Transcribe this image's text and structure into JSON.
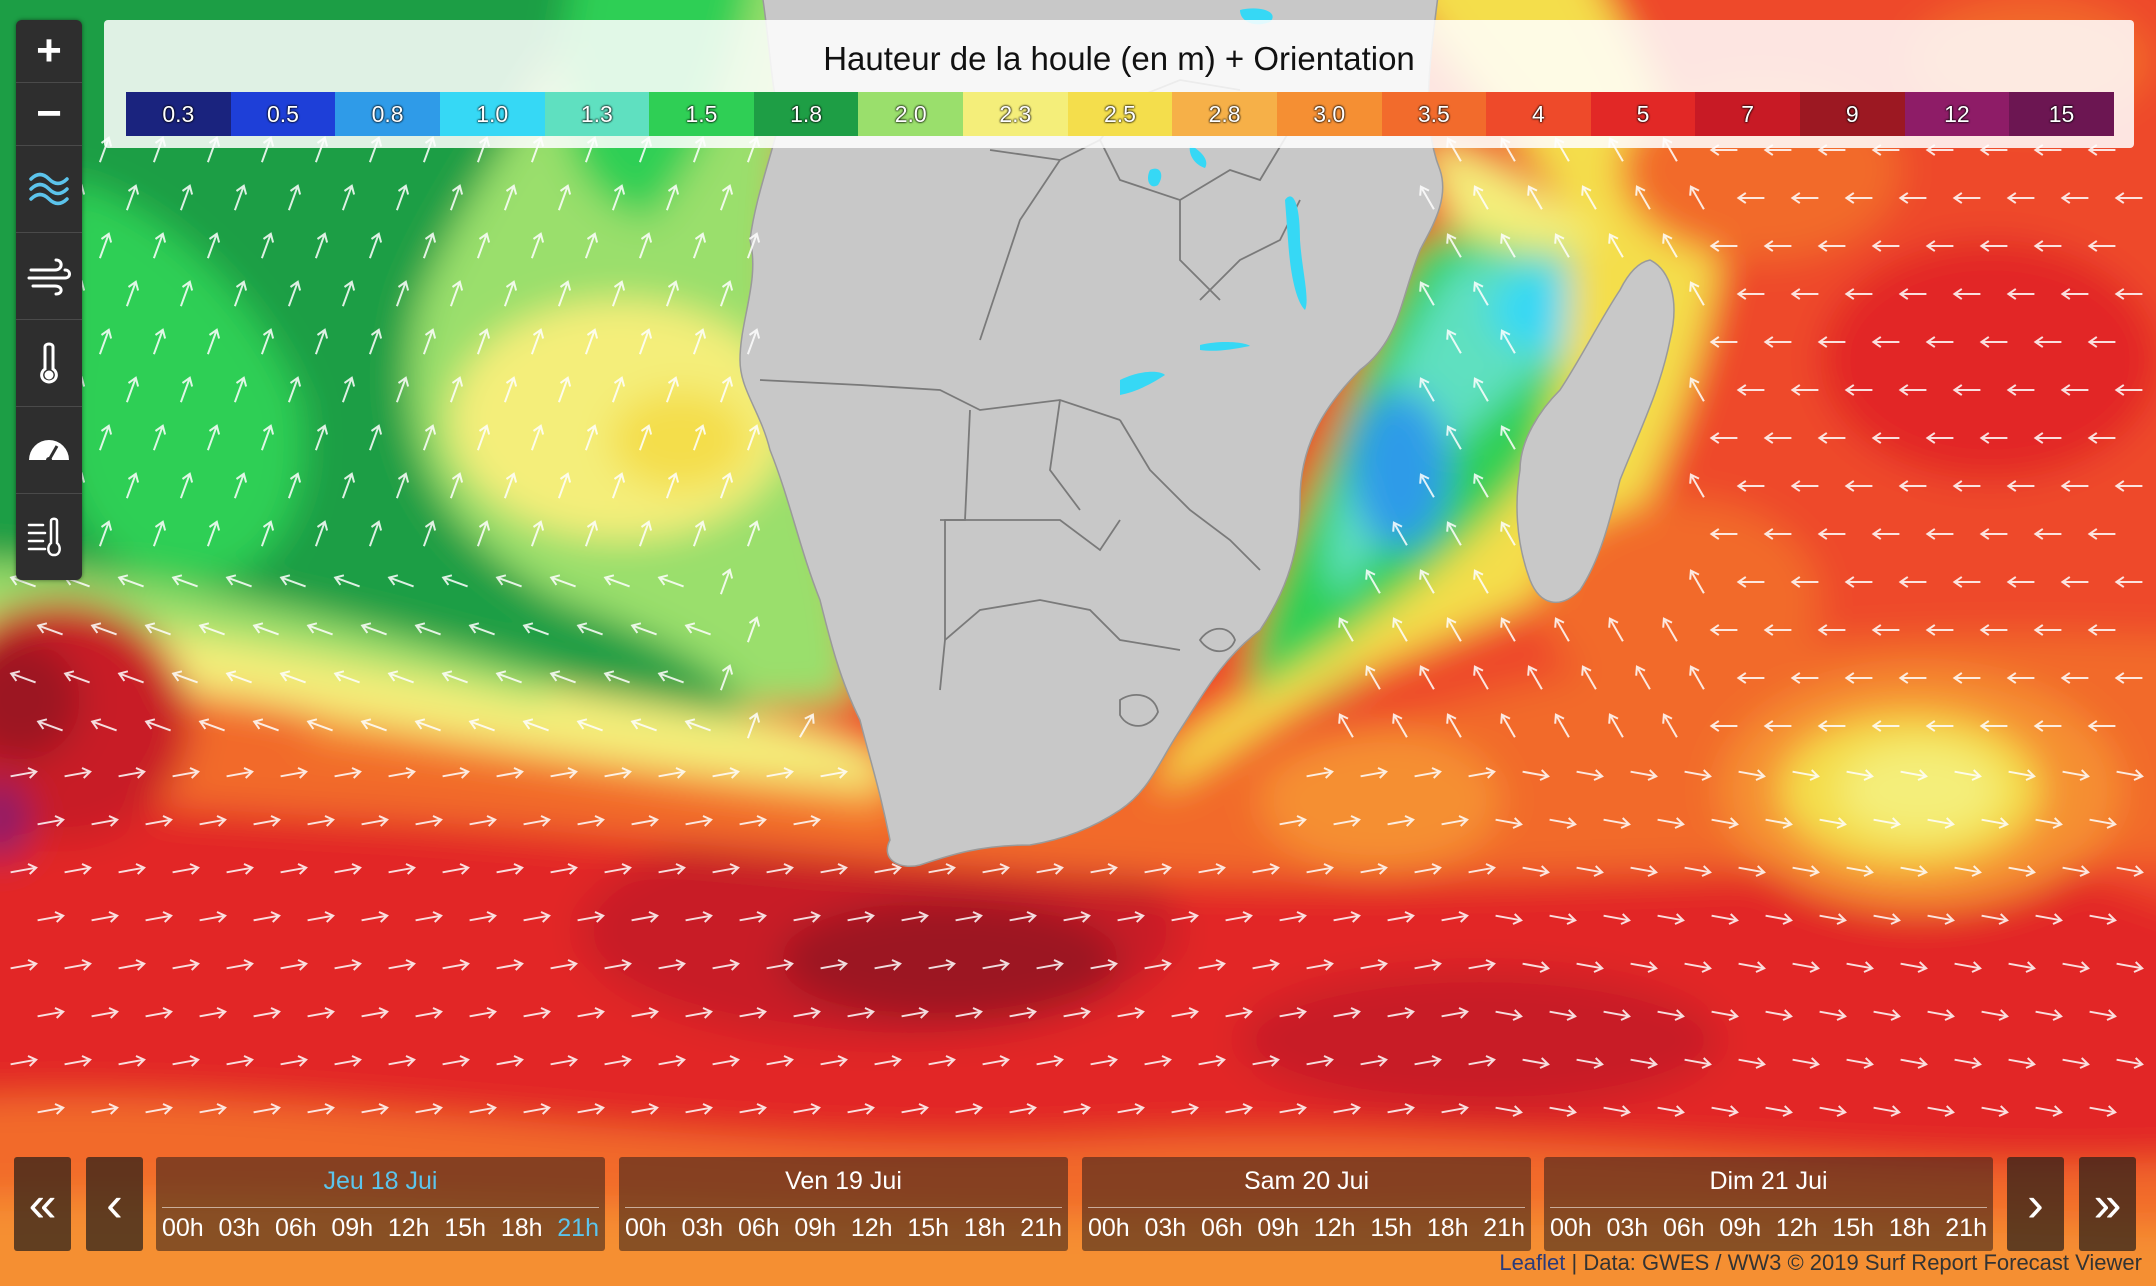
{
  "legend": {
    "title": "Hauteur de la houle (en m) + Orientation",
    "scale": [
      {
        "label": "0.3",
        "color": "#1a237e"
      },
      {
        "label": "0.5",
        "color": "#1e3fd8"
      },
      {
        "label": "0.8",
        "color": "#2f9be8"
      },
      {
        "label": "1.0",
        "color": "#36d8f5"
      },
      {
        "label": "1.3",
        "color": "#5fe0c0"
      },
      {
        "label": "1.5",
        "color": "#2fcf55"
      },
      {
        "label": "1.8",
        "color": "#1e9e45"
      },
      {
        "label": "2.0",
        "color": "#9adf6c"
      },
      {
        "label": "2.3",
        "color": "#f4ee7a"
      },
      {
        "label": "2.5",
        "color": "#f4de4c"
      },
      {
        "label": "2.8",
        "color": "#f6b048"
      },
      {
        "label": "3.0",
        "color": "#f58f33"
      },
      {
        "label": "3.5",
        "color": "#f26b2c"
      },
      {
        "label": "4",
        "color": "#ee4a2a"
      },
      {
        "label": "5",
        "color": "#e22826"
      },
      {
        "label": "7",
        "color": "#c81a25"
      },
      {
        "label": "9",
        "color": "#9c1822"
      },
      {
        "label": "12",
        "color": "#8e1c67"
      },
      {
        "label": "15",
        "color": "#6c1652"
      }
    ]
  },
  "toolbar": {
    "zoom_in": "+",
    "zoom_out": "−",
    "layers": [
      "waves-icon",
      "wind-icon",
      "thermometer-icon",
      "pressure-gauge-icon",
      "wind-chill-icon"
    ]
  },
  "timeline": {
    "first": "«",
    "prev": "‹",
    "next": "›",
    "last": "»",
    "days": [
      {
        "label": "Jeu 18 Jui",
        "active": true,
        "hours": [
          "00h",
          "03h",
          "06h",
          "09h",
          "12h",
          "15h",
          "18h",
          "21h"
        ],
        "active_hour": "21h"
      },
      {
        "label": "Ven 19 Jui",
        "active": false,
        "hours": [
          "00h",
          "03h",
          "06h",
          "09h",
          "12h",
          "15h",
          "18h",
          "21h"
        ]
      },
      {
        "label": "Sam 20 Jui",
        "active": false,
        "hours": [
          "00h",
          "03h",
          "06h",
          "09h",
          "12h",
          "15h",
          "18h",
          "21h"
        ]
      },
      {
        "label": "Dim 21 Jui",
        "active": false,
        "hours": [
          "00h",
          "03h",
          "06h",
          "09h",
          "12h",
          "15h",
          "18h",
          "21h"
        ]
      }
    ]
  },
  "attribution": {
    "leaflet": "Leaflet",
    "data": " | Data: GWES / WW3 © 2019 Surf Report Forecast Viewer"
  },
  "colors": {
    "land": "#c8c8c8",
    "border": "#6e6e6e",
    "arrow": "#ffffff"
  }
}
